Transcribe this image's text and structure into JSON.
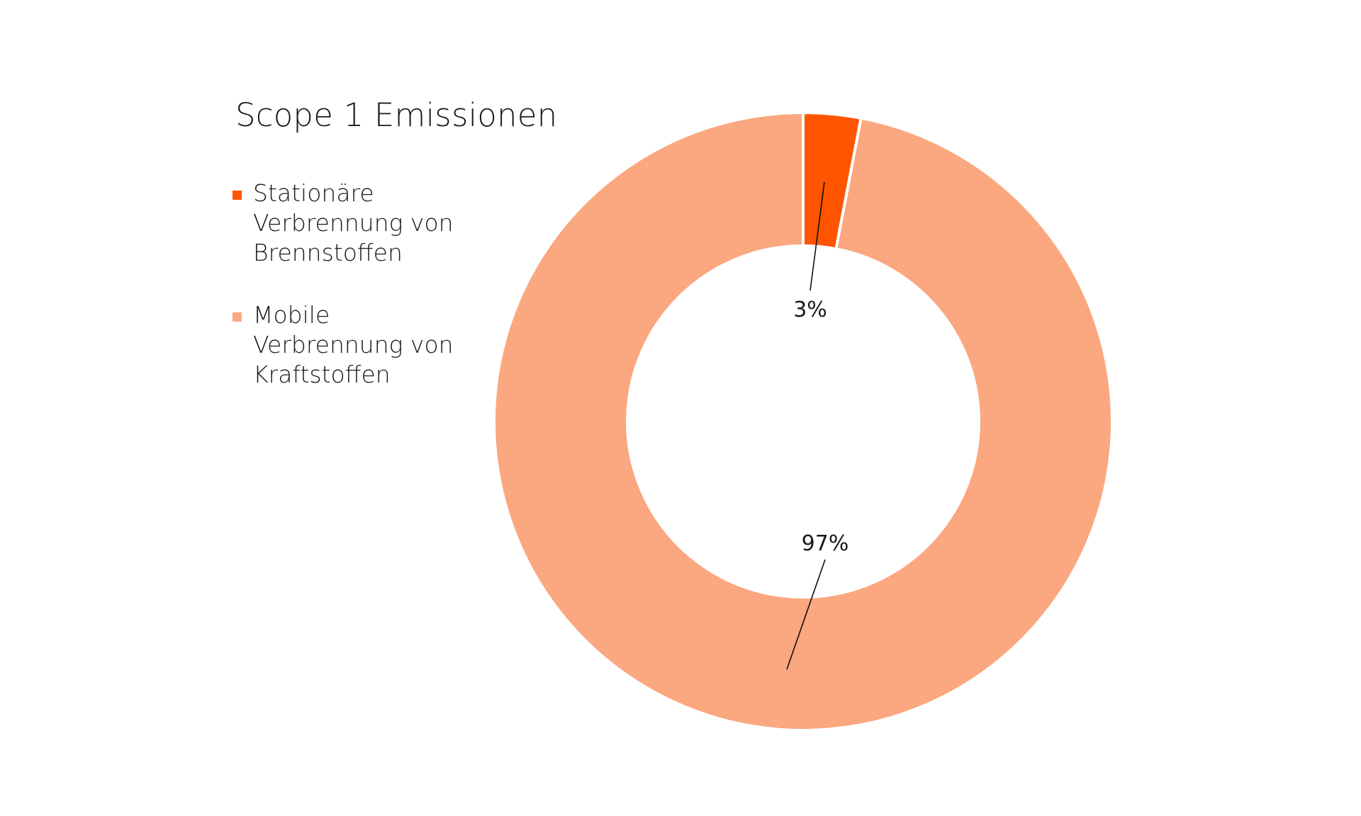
{
  "chart_data": {
    "type": "pie",
    "variant": "donut",
    "title": "Scope 1 Emissionen",
    "categories": [
      "Stationäre Verbrennung von Brennstoffen",
      "Mobile Verbrennung von Kraftstoffen"
    ],
    "values": [
      3,
      97
    ],
    "unit": "%",
    "data_labels": [
      "3%",
      "97%"
    ],
    "colors": [
      "#FF5500",
      "#FBA77F"
    ],
    "legend_position": "left",
    "start_angle_deg": 0,
    "direction": "clockwise"
  },
  "title": "Scope 1 Emissionen",
  "legend": {
    "items": [
      {
        "label": "Stationäre Verbrennung von Brennstoffen",
        "color": "#FF5500"
      },
      {
        "label": "Mobile Verbrennung von Kraftstoffen",
        "color": "#FBA77F"
      }
    ]
  },
  "labels": {
    "slice0": "3%",
    "slice1": "97%"
  }
}
